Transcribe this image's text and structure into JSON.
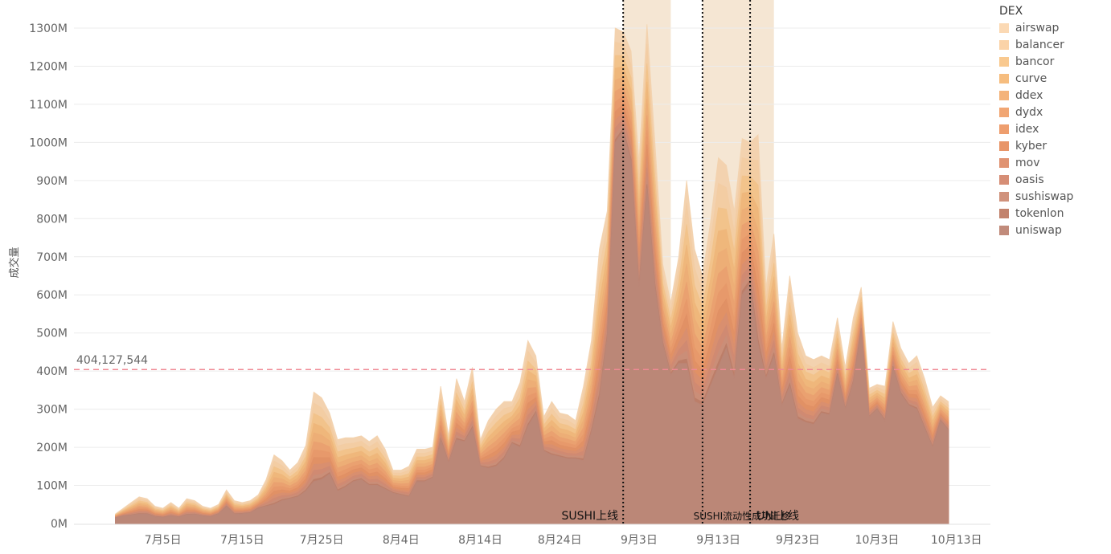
{
  "chart_data": {
    "type": "area",
    "ylabel": "成交量",
    "legend_title": "DEX",
    "legend_position": "right",
    "series": [
      {
        "name": "airswap",
        "color": "#fbd9b4"
      },
      {
        "name": "balancer",
        "color": "#fbd3a8"
      },
      {
        "name": "bancor",
        "color": "#f9c98f"
      },
      {
        "name": "curve",
        "color": "#f6bd7f"
      },
      {
        "name": "ddex",
        "color": "#f4b37a"
      },
      {
        "name": "dydx",
        "color": "#f1a673"
      },
      {
        "name": "idex",
        "color": "#ee9e6e"
      },
      {
        "name": "kyber",
        "color": "#e89568"
      },
      {
        "name": "mov",
        "color": "#e09372"
      },
      {
        "name": "oasis",
        "color": "#d68e76"
      },
      {
        "name": "sushiswap",
        "color": "#d0927c"
      },
      {
        "name": "tokenlon",
        "color": "#c2826c"
      },
      {
        "name": "uniswap",
        "color": "#c18b7b"
      }
    ],
    "x_ticks": [
      "7月5日",
      "7月15日",
      "7月25日",
      "8月4日",
      "8月14日",
      "8月24日",
      "9月3日",
      "9月13日",
      "9月23日",
      "10月3日",
      "10月13日"
    ],
    "y_ticks": [
      "0M",
      "100M",
      "200M",
      "300M",
      "400M",
      "500M",
      "600M",
      "700M",
      "800M",
      "900M",
      "1000M",
      "1100M",
      "1200M",
      "1300M"
    ],
    "ylim": [
      0,
      1360
    ],
    "x_start_date": "2020-06-29",
    "x_end_date": "2020-10-15",
    "reference_line": {
      "value": 404127544,
      "label": "404,127,544",
      "color": "#f08a94"
    },
    "events": [
      {
        "label": "SUSHI上线",
        "date": "2020-09-01"
      },
      {
        "label": "SUSHI流动性成功迁移",
        "date": "2020-09-11"
      },
      {
        "label": "UNI上线",
        "date": "2020-09-17"
      }
    ],
    "highlight_bands": [
      {
        "start": "2020-09-01",
        "end": "2020-09-07"
      },
      {
        "start": "2020-09-11",
        "end": "2020-09-20"
      }
    ],
    "band_color": "#f5e6d3",
    "daily_totals_M": [
      25,
      40,
      55,
      70,
      65,
      45,
      40,
      55,
      40,
      65,
      60,
      45,
      40,
      50,
      88,
      60,
      55,
      60,
      75,
      115,
      180,
      165,
      140,
      160,
      205,
      345,
      330,
      290,
      220,
      225,
      225,
      230,
      215,
      230,
      195,
      140,
      140,
      150,
      195,
      195,
      200,
      360,
      230,
      380,
      320,
      410,
      220,
      270,
      300,
      320,
      320,
      370,
      480,
      440,
      280,
      320,
      290,
      285,
      270,
      360,
      480,
      720,
      820,
      1300,
      1290,
      1240,
      950,
      1310,
      1000,
      680,
      580,
      700,
      900,
      720,
      650,
      790,
      960,
      940,
      820,
      1010,
      1000,
      1020,
      620,
      760,
      460,
      650,
      500,
      440,
      430,
      440,
      430,
      540,
      410,
      540,
      620,
      355,
      365,
      360,
      530,
      460,
      420,
      440,
      380,
      305,
      335,
      320
    ],
    "daily_uniswap_M": [
      15,
      20,
      22,
      25,
      25,
      18,
      16,
      20,
      17,
      23,
      24,
      20,
      18,
      25,
      45,
      25,
      26,
      28,
      40,
      45,
      50,
      60,
      65,
      70,
      85,
      110,
      115,
      130,
      85,
      95,
      110,
      115,
      100,
      100,
      90,
      80,
      75,
      70,
      110,
      110,
      120,
      220,
      160,
      220,
      215,
      250,
      150,
      145,
      150,
      170,
      210,
      200,
      255,
      290,
      190,
      180,
      175,
      170,
      170,
      165,
      240,
      330,
      490,
      1000,
      1030,
      950,
      620,
      880,
      620,
      470,
      390,
      420,
      420,
      320,
      310,
      360,
      410,
      460,
      380,
      600,
      630,
      470,
      380,
      440,
      310,
      360,
      275,
      265,
      260,
      290,
      285,
      390,
      300,
      370,
      510,
      280,
      300,
      270,
      410,
      340,
      310,
      300,
      250,
      200,
      270,
      245
    ]
  }
}
